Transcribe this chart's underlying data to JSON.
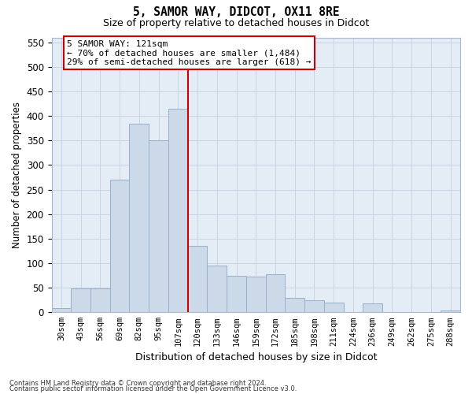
{
  "title": "5, SAMOR WAY, DIDCOT, OX11 8RE",
  "subtitle": "Size of property relative to detached houses in Didcot",
  "xlabel": "Distribution of detached houses by size in Didcot",
  "ylabel": "Number of detached properties",
  "categories": [
    "30sqm",
    "43sqm",
    "56sqm",
    "69sqm",
    "82sqm",
    "95sqm",
    "107sqm",
    "120sqm",
    "133sqm",
    "146sqm",
    "159sqm",
    "172sqm",
    "185sqm",
    "198sqm",
    "211sqm",
    "224sqm",
    "236sqm",
    "249sqm",
    "262sqm",
    "275sqm",
    "288sqm"
  ],
  "values": [
    8,
    48,
    48,
    270,
    385,
    350,
    415,
    135,
    95,
    75,
    72,
    78,
    30,
    25,
    20,
    0,
    18,
    0,
    0,
    0,
    3
  ],
  "bar_color": "#ccd9e8",
  "bar_edge_color": "#9ab0c8",
  "vline_color": "#cc0000",
  "annotation_text": "5 SAMOR WAY: 121sqm\n← 70% of detached houses are smaller (1,484)\n29% of semi-detached houses are larger (618) →",
  "annotation_box_facecolor": "#ffffff",
  "annotation_box_edgecolor": "#cc0000",
  "ylim": [
    0,
    560
  ],
  "yticks": [
    0,
    50,
    100,
    150,
    200,
    250,
    300,
    350,
    400,
    450,
    500,
    550
  ],
  "grid_color": "#c8d4e4",
  "background_color": "#e4ecf6",
  "footnote1": "Contains HM Land Registry data © Crown copyright and database right 2024.",
  "footnote2": "Contains public sector information licensed under the Open Government Licence v3.0."
}
